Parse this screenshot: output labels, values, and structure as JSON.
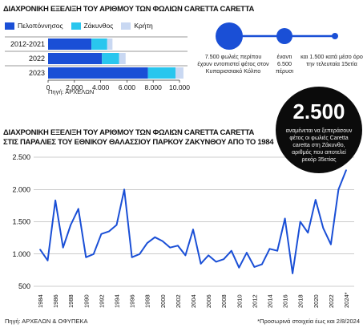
{
  "chart_data": [
    {
      "type": "bar",
      "orientation": "horizontal",
      "stacked": true,
      "title": "ΔΙΑΧΡΟΝΙΚΗ ΕΞΕΛΙΞΗ ΤΟΥ ΑΡΙΘΜΟΥ ΤΩΝ ΦΩΛΙΩΝ CARETTA CARETTA",
      "categories": [
        "2012-2021",
        "2022",
        "2023"
      ],
      "series": [
        {
          "name": "Πελοπόννησος",
          "color": "#1a4fd6",
          "values": [
            3300,
            4100,
            7600
          ]
        },
        {
          "name": "Ζάκυνθος",
          "color": "#29c6ee",
          "values": [
            1200,
            1300,
            2100
          ]
        },
        {
          "name": "Κρήτη",
          "color": "#c9d8f2",
          "values": [
            400,
            500,
            600
          ]
        }
      ],
      "xlim": [
        0,
        10000
      ],
      "xticks": [
        "0",
        "2.000",
        "4.000",
        "6.000",
        "8.000",
        "10.000"
      ],
      "source": "Πηγή: ΑΡΧΕΛΩΝ"
    },
    {
      "type": "line",
      "title_lines": [
        "ΔΙΑΧΡΟΝΙΚΗ ΕΞΕΛΙΞΗ ΤΟΥ ΑΡΙΘΜΟΥ ΤΩΝ ΦΩΛΙΩΝ CARETTA CARETTA",
        "ΣΤΙΣ ΠΑΡΑΛΙΕΣ ΤΟΥ ΕΘΝΙΚΟΥ ΘΑΛΑΣΣΙΟΥ ΠΑΡΚΟΥ ΖΑΚΥΝΘΟΥ ΑΠΟ ΤΟ 1984"
      ],
      "x": [
        1984,
        1985,
        1986,
        1987,
        1988,
        1989,
        1990,
        1991,
        1992,
        1993,
        1994,
        1995,
        1996,
        1997,
        1998,
        1999,
        2000,
        2001,
        2002,
        2003,
        2004,
        2005,
        2006,
        2007,
        2008,
        2009,
        2010,
        2011,
        2012,
        2013,
        2014,
        2015,
        2016,
        2017,
        2018,
        2019,
        2020,
        2021,
        2022,
        2023,
        2024
      ],
      "series": [
        {
          "color": "#1a4fd6",
          "values": [
            1070,
            900,
            1830,
            1100,
            1450,
            1700,
            950,
            1000,
            1310,
            1350,
            1450,
            2000,
            950,
            1000,
            1170,
            1260,
            1200,
            1100,
            1130,
            980,
            1380,
            850,
            980,
            880,
            920,
            1050,
            790,
            1020,
            800,
            840,
            1080,
            1050,
            1550,
            700,
            1500,
            1330,
            1840,
            1400,
            1150,
            2000,
            2300
          ]
        }
      ],
      "ylim": [
        500,
        2500
      ],
      "yticks": [
        "500",
        "1.000",
        "1.500",
        "2.000",
        "2.500"
      ],
      "xtick_labels": [
        "1984",
        "1986",
        "1988",
        "1990",
        "1992",
        "1994",
        "1996",
        "1998",
        "2000",
        "2002",
        "2004",
        "2006",
        "2008",
        "2010",
        "2012",
        "2014",
        "2016",
        "2018",
        "2020",
        "2022",
        "2024*"
      ],
      "source": "Πηγή: ΑΡΧΕΛΩΝ & ΟΦΥΠΕΚΑ",
      "note": "*Προσωρινά στοιχεία έως και 2/8/2024"
    }
  ],
  "infographic": {
    "circles_color": "#1a4fd6",
    "labels": [
      "7.500 φωλιές περίπου έχουν εντοπιστεί φέτος στον Κυπαρισσιακό Κόλπο",
      "έναντι 6.500 πέρυσι",
      "και 1.500 κατά μέσο όρο την τελευταία 15ετία"
    ]
  },
  "badge": {
    "number": "2.500",
    "text": "αναμένεται να ξεπεράσουν φέτος οι φωλιές Caretta caretta στη Ζάκυνθο, αριθμός που αποτελεί ρεκόρ 35ετίας"
  }
}
